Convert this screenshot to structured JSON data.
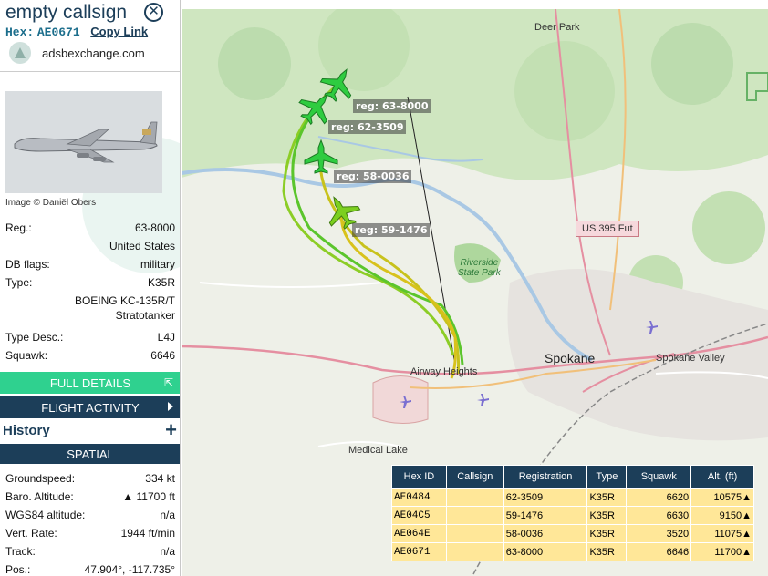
{
  "header": {
    "callsign": "empty callsign",
    "hex_label": "Hex:",
    "hex_value": "AE0671",
    "copy_link": "Copy Link",
    "site": "adsbexchange.com"
  },
  "photo_credit": "Image © Daniël Obers",
  "aircraft": {
    "reg_label": "Reg.:",
    "reg": "63-8000",
    "country": "United States",
    "dbflags_label": "DB flags:",
    "dbflags": "military",
    "type_label": "Type:",
    "type": "K35R",
    "type_full_1": "BOEING KC-135R/T",
    "type_full_2": "Stratotanker",
    "type_desc_label": "Type Desc.:",
    "type_desc": "L4J",
    "squawk_label": "Squawk:",
    "squawk": "6646"
  },
  "buttons": {
    "full_details": "FULL DETAILS",
    "flight_activity": "FLIGHT ACTIVITY",
    "history": "History",
    "spatial": "SPATIAL"
  },
  "spatial": {
    "groundspeed_label": "Groundspeed:",
    "groundspeed": "334 kt",
    "baro_label": "Baro. Altitude:",
    "baro": "▲ 11700 ft",
    "wgs_label": "WGS84 altitude:",
    "wgs": "n/a",
    "vert_label": "Vert. Rate:",
    "vert": "1944 ft/min",
    "track_label": "Track:",
    "track": "n/a",
    "pos_label": "Pos.:",
    "pos": "47.904°, -117.735°"
  },
  "map": {
    "labels": {
      "deer_park": "Deer Park",
      "spokane": "Spokane",
      "spokane_valley": "Spokane Valley",
      "airway_heights": "Airway Heights",
      "medical_lake": "Medical Lake",
      "riverside": "Riverside",
      "state_park": "State Park",
      "us395": "US 395 Fut"
    },
    "reg_labels": {
      "a": "reg: 63-8000",
      "b": "reg: 62-3509",
      "c": "reg: 58-0036",
      "d": "reg: 59-1476"
    },
    "colors": {
      "track_green": "#2fbf3a",
      "track_yellow": "#d8c21c",
      "plane_green": "#2ecc40",
      "plane_yellowgreen": "#7ccf1f"
    }
  },
  "table": {
    "headers": [
      "Hex ID",
      "Callsign",
      "Registration",
      "Type",
      "Squawk",
      "Alt. (ft)"
    ],
    "rows": [
      {
        "hex": "AE0484",
        "callsign": "",
        "reg": "62-3509",
        "type": "K35R",
        "squawk": "6620",
        "alt": "10575▲"
      },
      {
        "hex": "AE04C5",
        "callsign": "",
        "reg": "59-1476",
        "type": "K35R",
        "squawk": "6630",
        "alt": "9150▲"
      },
      {
        "hex": "AE064E",
        "callsign": "",
        "reg": "58-0036",
        "type": "K35R",
        "squawk": "3520",
        "alt": "11075▲"
      },
      {
        "hex": "AE0671",
        "callsign": "",
        "reg": "63-8000",
        "type": "K35R",
        "squawk": "6646",
        "alt": "11700▲"
      }
    ]
  }
}
